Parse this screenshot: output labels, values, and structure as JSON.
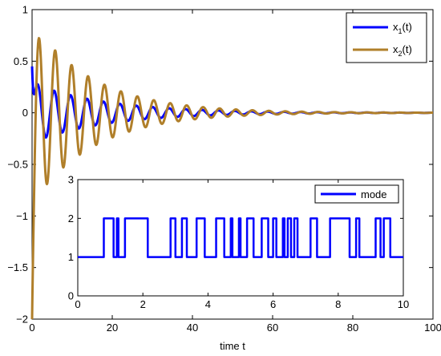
{
  "chart_data": [
    {
      "type": "line",
      "xlabel": "time t",
      "ylabel": "",
      "xlim": [
        0,
        100
      ],
      "ylim": [
        -2,
        1
      ],
      "x_ticks": [
        0,
        20,
        40,
        60,
        80,
        100
      ],
      "y_ticks": [
        -2,
        -1.5,
        -1,
        -0.5,
        0,
        0.5,
        1
      ],
      "x_tick_labels": [
        "0",
        "20",
        "40",
        "60",
        "80",
        "100"
      ],
      "y_tick_labels": [
        "−2",
        "−1.5",
        "−1",
        "−0.5",
        "0",
        "0.5",
        "1"
      ],
      "legend_position": "top-right",
      "legend": [
        {
          "base": "x",
          "sub": "1",
          "suffix": "(t)"
        },
        {
          "base": "x",
          "sub": "2",
          "suffix": "(t)"
        }
      ],
      "series": [
        {
          "name": "x1(t)",
          "color": "#0000ff",
          "model": {
            "type": "damped-oscillation",
            "initial": 0.45,
            "amplitude": 0.29,
            "decay_rate": 0.055,
            "period": 4.1,
            "phase": 0.6
          }
        },
        {
          "name": "x2(t)",
          "color": "#b07f2a",
          "model": {
            "type": "damped-oscillation",
            "initial": -2.0,
            "amplitude": 0.88,
            "decay_rate": 0.065,
            "period": 4.1,
            "phase": 1.0
          }
        }
      ]
    },
    {
      "type": "line",
      "step": true,
      "xlim": [
        0,
        10
      ],
      "ylim": [
        0,
        3
      ],
      "x_ticks": [
        0,
        2,
        4,
        6,
        8,
        10
      ],
      "y_ticks": [
        0,
        1,
        2,
        3
      ],
      "x_tick_labels": [
        "0",
        "2",
        "4",
        "6",
        "8",
        "10"
      ],
      "y_tick_labels": [
        "0",
        "1",
        "2",
        "3"
      ],
      "legend_position": "top-right",
      "legend": [
        {
          "base": "mode",
          "sub": "",
          "suffix": ""
        }
      ],
      "series": [
        {
          "name": "mode",
          "color": "#0000ff",
          "initial_value": 1,
          "switch_times": [
            0.8,
            1.1,
            1.2,
            1.25,
            1.45,
            2.15,
            2.85,
            3.0,
            3.2,
            3.35,
            3.65,
            3.9,
            4.25,
            4.5,
            4.7,
            4.75,
            4.95,
            5.0,
            5.2,
            5.4,
            5.65,
            5.85,
            6.0,
            6.1,
            6.3,
            6.35,
            6.45,
            6.55,
            6.65,
            6.75,
            7.15,
            7.35,
            7.75,
            8.35,
            8.55,
            8.65,
            9.15,
            9.3,
            9.4,
            9.6
          ],
          "end": 10
        }
      ]
    }
  ]
}
